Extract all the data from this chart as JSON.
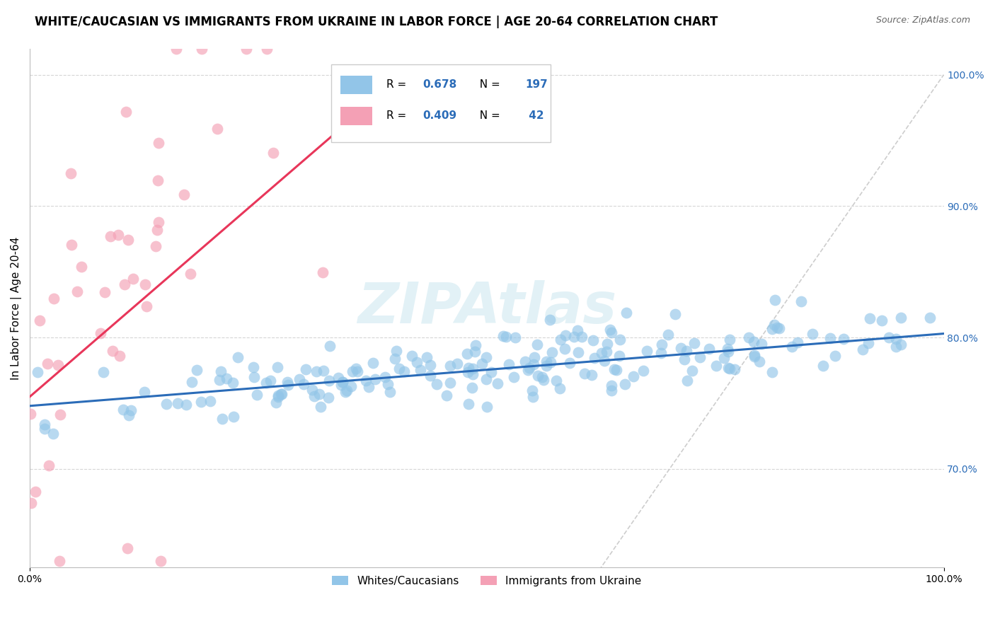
{
  "title": "WHITE/CAUCASIAN VS IMMIGRANTS FROM UKRAINE IN LABOR FORCE | AGE 20-64 CORRELATION CHART",
  "source": "Source: ZipAtlas.com",
  "ylabel": "In Labor Force | Age 20-64",
  "xmin": 0.0,
  "xmax": 1.0,
  "ymin": 0.625,
  "ymax": 1.02,
  "right_yticks": [
    0.7,
    0.8,
    0.9,
    1.0
  ],
  "right_yticklabels": [
    "70.0%",
    "80.0%",
    "90.0%",
    "100.0%"
  ],
  "blue_color": "#92C5E8",
  "pink_color": "#F4A0B5",
  "blue_line_color": "#2B6CB8",
  "pink_line_color": "#E8365A",
  "ref_line_color": "#C8C8C8",
  "grid_color": "#CCCCCC",
  "watermark": "ZIPAtlas",
  "title_fontsize": 12,
  "label_fontsize": 11,
  "tick_fontsize": 10,
  "blue_trend_x0": 0.0,
  "blue_trend_y0": 0.748,
  "blue_trend_x1": 1.0,
  "blue_trend_y1": 0.803,
  "pink_trend_x0": 0.0,
  "pink_trend_y0": 0.755,
  "pink_trend_x1": 0.35,
  "pink_trend_y1": 0.965,
  "blue_seed": 42,
  "pink_seed": 77
}
